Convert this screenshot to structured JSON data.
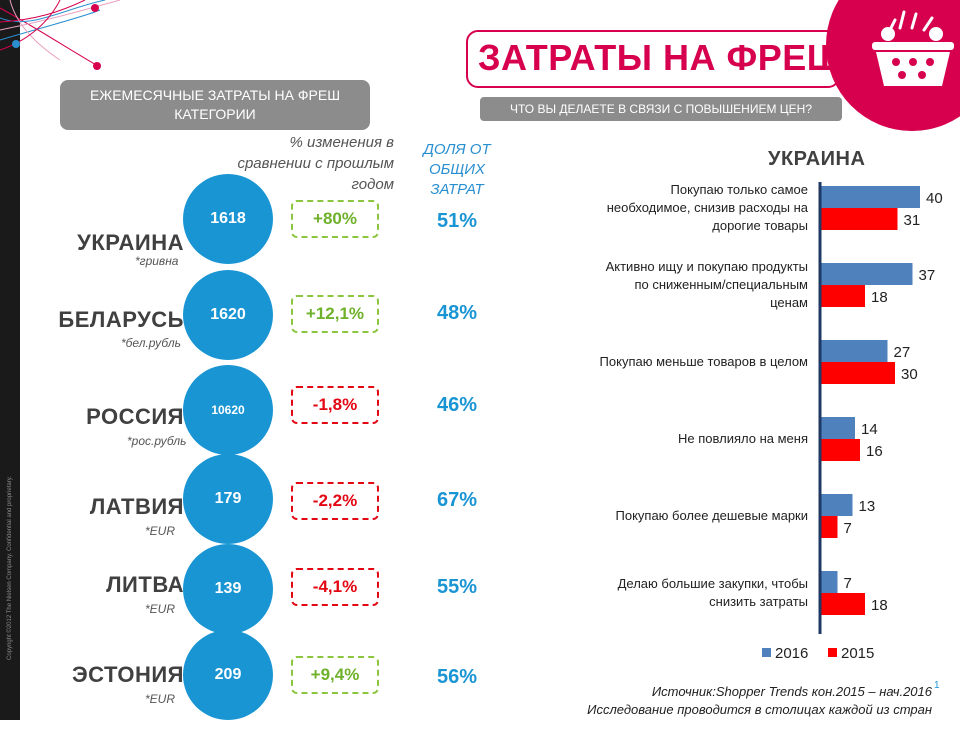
{
  "title": "ЗАТРАТЫ НА ФРЕШ",
  "question": "ЧТО ВЫ ДЕЛАЕТЕ В СВЯЗИ С ПОВЫШЕНИЕМ ЦЕН?",
  "copyright": "Copyright ©2012 The Nielsen Company. Confidential and proprietary.",
  "left_panel": {
    "header": "ЕЖЕМЕСЯЧНЫЕ ЗАТРАТЫ НА ФРЕШ КАТЕГОРИИ",
    "pct_header": "% изменения в сравнении с прошлым годом",
    "share_header": "ДОЛЯ ОТ ОБЩИХ ЗАТРАТ",
    "rows": [
      {
        "country": "УКРАИНА",
        "currency": "*гривна",
        "spend": "1618",
        "change": "+80%",
        "change_sign": "pos",
        "share": "51%"
      },
      {
        "country": "БЕЛАРУСЬ",
        "currency": "*бел.рубль",
        "spend": "1620",
        "change": "+12,1%",
        "change_sign": "pos",
        "share": "48%"
      },
      {
        "country": "РОССИЯ",
        "currency": "*рос.рубль",
        "spend": "10620",
        "change": "-1,8%",
        "change_sign": "neg",
        "share": "46%"
      },
      {
        "country": "ЛАТВИЯ",
        "currency": "*EUR",
        "spend": "179",
        "change": "-2,2%",
        "change_sign": "neg",
        "share": "67%"
      },
      {
        "country": "ЛИТВА",
        "currency": "*EUR",
        "spend": "139",
        "change": "-4,1%",
        "change_sign": "neg",
        "share": "55%"
      },
      {
        "country": "ЭСТОНИЯ",
        "currency": "*EUR",
        "spend": "209",
        "change": "+9,4%",
        "change_sign": "pos",
        "share": "56%"
      }
    ]
  },
  "chart_data": {
    "type": "bar",
    "orientation": "horizontal",
    "title": "УКРАИНА",
    "categories": [
      "Покупаю только самое необходимое, снизив расходы на дорогие товары",
      "Активно ищу и покупаю продукты по сниженным/специальным ценам",
      "Покупаю меньше товаров в целом",
      "Не повлияло на меня",
      "Покупаю более дешевые марки",
      "Делаю большие закупки, чтобы снизить затраты"
    ],
    "category_lines": [
      [
        "Покупаю только самое",
        "необходимое, снизив расходы на",
        "дорогие товары"
      ],
      [
        "Активно ищу и покупаю продукты",
        "по сниженным/специальным",
        "ценам"
      ],
      [
        "Покупаю меньше товаров в целом"
      ],
      [
        "Не повлияло на меня"
      ],
      [
        "Покупаю более дешевые марки"
      ],
      [
        "Делаю большие закупки, чтобы",
        "снизить затраты"
      ]
    ],
    "series": [
      {
        "name": "2016",
        "color": "#4f81bd",
        "values": [
          40,
          37,
          27,
          14,
          13,
          7
        ]
      },
      {
        "name": "2015",
        "color": "#ff0000",
        "values": [
          31,
          18,
          30,
          16,
          7,
          18
        ]
      }
    ],
    "xlim": [
      0,
      45
    ],
    "legend": "bottom",
    "axis_color": "#1f3864"
  },
  "source": {
    "line1": "Источник:Shopper Trends кон.2015 – нач.2016",
    "line2": "Исследование проводится в столицах каждой из стран"
  },
  "page_number": "1",
  "colors": {
    "brand": "#d6004e",
    "bubble": "#1a95d4",
    "positive": "#6fb12a",
    "negative": "#e30613",
    "header_gray": "#8c8c8c"
  }
}
